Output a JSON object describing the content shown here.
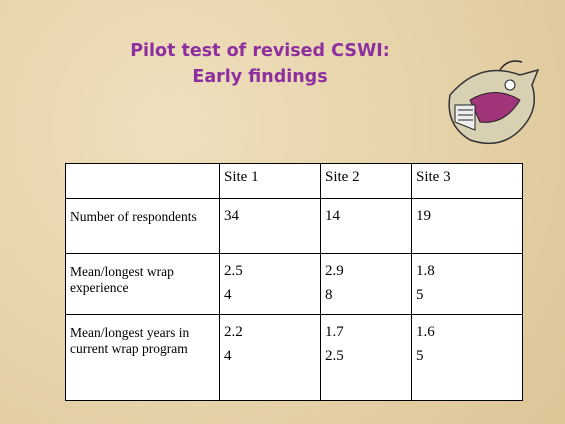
{
  "header": {
    "title": [
      "Pilot test of revised CSWI:",
      "Early findings"
    ]
  },
  "table": {
    "header": [
      "Site 1",
      "Site 2",
      "Site 3"
    ],
    "rows": [
      {
        "label": "Number of respondents",
        "cells": [
          [
            "34"
          ],
          [
            "14"
          ],
          [
            "19"
          ]
        ]
      },
      {
        "label": "Mean/longest wrap experience",
        "cells": [
          [
            "2.5",
            "4"
          ],
          [
            "2.9",
            "8"
          ],
          [
            "1.8",
            "5"
          ]
        ]
      },
      {
        "label": "Mean/longest years in current wrap program",
        "cells": [
          [
            "2.2",
            "4"
          ],
          [
            "1.7",
            "2.5"
          ],
          [
            "1.6",
            "5"
          ]
        ]
      }
    ]
  }
}
